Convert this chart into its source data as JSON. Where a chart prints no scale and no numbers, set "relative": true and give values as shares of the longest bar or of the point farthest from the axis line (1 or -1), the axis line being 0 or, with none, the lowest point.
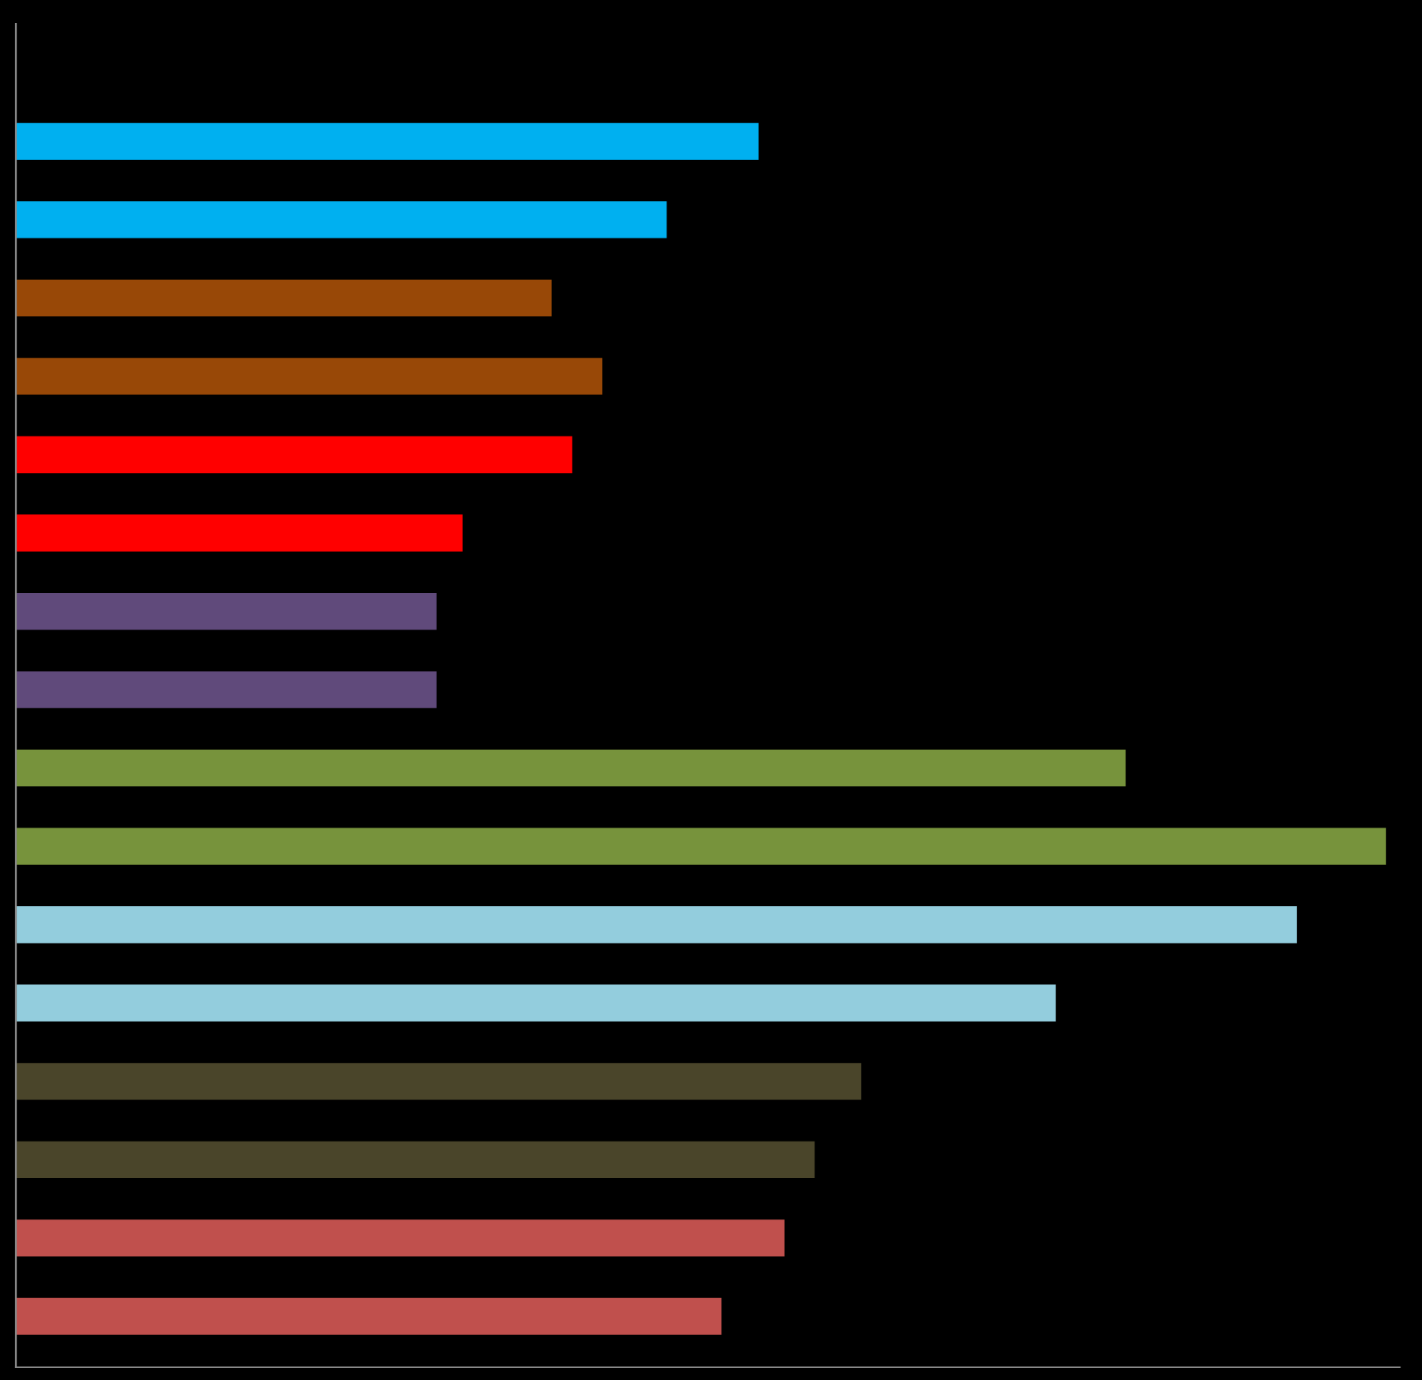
{
  "chart_data": {
    "type": "bar",
    "orientation": "horizontal",
    "relative": true,
    "categories": [
      null,
      null,
      null,
      null,
      null,
      null,
      null,
      null,
      null,
      null,
      null,
      null,
      null,
      null,
      null,
      null
    ],
    "values": [
      0.542,
      0.475,
      0.391,
      0.428,
      0.406,
      0.326,
      0.307,
      0.307,
      0.81,
      1,
      0.935,
      0.759,
      0.617,
      0.583,
      0.561,
      0.515
    ],
    "colors": [
      "#00b0f0",
      "#00b0f0",
      "#984807",
      "#984807",
      "#ff0000",
      "#ff0000",
      "#604a7b",
      "#604a7b",
      "#77933c",
      "#77933c",
      "#93cddd",
      "#93cddd",
      "#4a452a",
      "#4a452a",
      "#c0504d",
      "#c0504d"
    ],
    "grid": false,
    "legend": false
  }
}
